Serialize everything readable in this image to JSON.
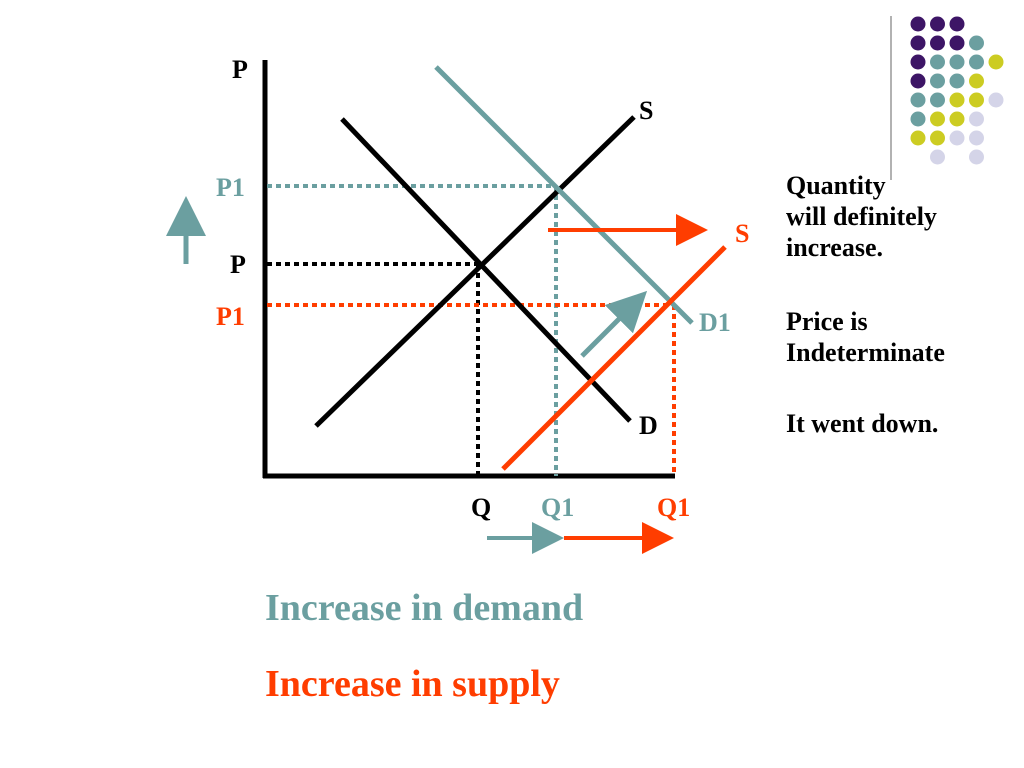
{
  "colors": {
    "black": "#000000",
    "teal": "#6b9fa0",
    "orange": "#ff3d00",
    "purple": "#3d1566",
    "olive": "#cccc22",
    "lavender": "#d4d4e8"
  },
  "graph": {
    "y_axis_label": "P",
    "x_axis_label": "",
    "price_labels": {
      "p_original": "P",
      "p1_demand": "P1",
      "p1_supply": "P1"
    },
    "quantity_labels": {
      "q_original": "Q",
      "q1_demand": "Q1",
      "q1_supply": "Q1"
    },
    "curve_labels": {
      "supply_original": "S",
      "demand_original": "D",
      "demand_shifted": "D1",
      "supply_shifted": "S"
    }
  },
  "notes": {
    "quantity_line1": "Quantity",
    "quantity_line2": "will definitely",
    "quantity_line3": "increase.",
    "price_line1": "Price is",
    "price_line2": "Indeterminate",
    "direction": "It went down."
  },
  "captions": {
    "demand": "Increase in demand",
    "supply": "Increase in supply"
  },
  "decoration": {
    "dots": [
      [
        "purple",
        "purple",
        "purple",
        "none",
        "none"
      ],
      [
        "purple",
        "purple",
        "purple",
        "teal",
        "none"
      ],
      [
        "purple",
        "teal",
        "teal",
        "teal",
        "olive"
      ],
      [
        "purple",
        "teal",
        "teal",
        "olive",
        "none"
      ],
      [
        "teal",
        "teal",
        "olive",
        "olive",
        "lavender"
      ],
      [
        "teal",
        "olive",
        "olive",
        "lavender",
        "none"
      ],
      [
        "olive",
        "olive",
        "lavender",
        "lavender",
        "none"
      ],
      [
        "none",
        "lavender",
        "none",
        "lavender",
        "none"
      ]
    ]
  }
}
